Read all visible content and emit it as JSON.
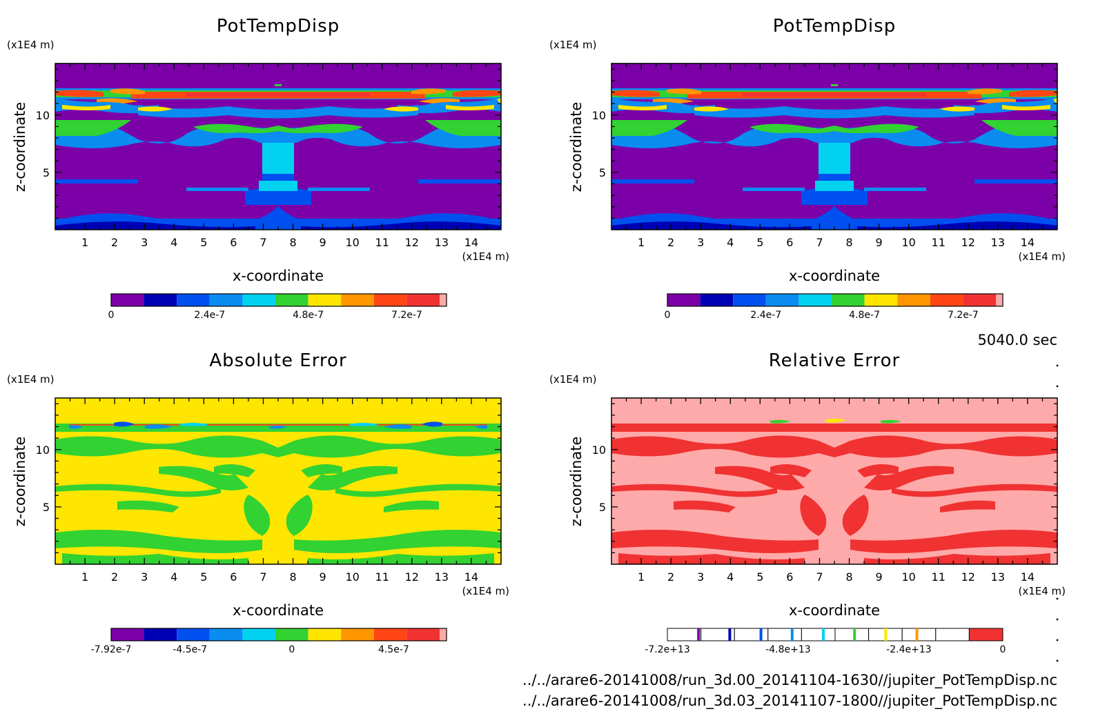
{
  "timestamp": "5040.0 sec",
  "footer": {
    "line1": "../../arare6-20141008/run_3d.00_20141104-1630//jupiter_PotTempDisp.nc",
    "line2": "../../arare6-20141008/run_3d.03_20141107-1800//jupiter_PotTempDisp.nc"
  },
  "chart_data": [
    {
      "type": "heatmap",
      "title": "PotTempDisp",
      "xlabel": "x-coordinate",
      "ylabel": "z-coordinate",
      "x_unit": "(x1E4 m)",
      "y_unit": "(x1E4 m)",
      "xlim": [
        0,
        15
      ],
      "ylim": [
        0,
        14.5
      ],
      "x_ticks": [
        1,
        2,
        3,
        4,
        5,
        6,
        7,
        8,
        9,
        10,
        11,
        12,
        13,
        14
      ],
      "y_ticks": [
        5,
        10
      ],
      "colorbar": {
        "colors": [
          "#7b00a8",
          "#0000b4",
          "#0050f0",
          "#0a8cf0",
          "#00d2f0",
          "#32d232",
          "#ffe600",
          "#ff9600",
          "#ff4614",
          "#f03232",
          "#ffaaaa"
        ],
        "labels": [
          "0",
          "2.4e-7",
          "4.8e-7",
          "7.2e-7"
        ],
        "label_positions": [
          0,
          3,
          6,
          9
        ]
      }
    },
    {
      "type": "heatmap",
      "title": "PotTempDisp",
      "xlabel": "x-coordinate",
      "ylabel": "z-coordinate",
      "x_unit": "(x1E4 m)",
      "y_unit": "(x1E4 m)",
      "xlim": [
        0,
        15
      ],
      "ylim": [
        0,
        14.5
      ],
      "x_ticks": [
        1,
        2,
        3,
        4,
        5,
        6,
        7,
        8,
        9,
        10,
        11,
        12,
        13,
        14
      ],
      "y_ticks": [
        5,
        10
      ],
      "colorbar": {
        "colors": [
          "#7b00a8",
          "#0000b4",
          "#0050f0",
          "#0a8cf0",
          "#00d2f0",
          "#32d232",
          "#ffe600",
          "#ff9600",
          "#ff4614",
          "#f03232",
          "#ffaaaa"
        ],
        "labels": [
          "0",
          "2.4e-7",
          "4.8e-7",
          "7.2e-7"
        ],
        "label_positions": [
          0,
          3,
          6,
          9
        ]
      }
    },
    {
      "type": "heatmap",
      "title": "Absolute Error",
      "xlabel": "x-coordinate",
      "ylabel": "z-coordinate",
      "x_unit": "(x1E4 m)",
      "y_unit": "(x1E4 m)",
      "xlim": [
        0,
        15
      ],
      "ylim": [
        0,
        14.5
      ],
      "x_ticks": [
        1,
        2,
        3,
        4,
        5,
        6,
        7,
        8,
        9,
        10,
        11,
        12,
        13,
        14
      ],
      "y_ticks": [
        5,
        10
      ],
      "colorbar": {
        "colors": [
          "#7b00a8",
          "#0000b4",
          "#0050f0",
          "#0a8cf0",
          "#00d2f0",
          "#32d232",
          "#ffe600",
          "#ff9600",
          "#ff4614",
          "#f03232",
          "#ffaaaa"
        ],
        "labels": [
          "-7.92e-7",
          "-4.5e-7",
          "0",
          "4.5e-7"
        ],
        "label_positions": [
          0,
          2.4,
          5.5,
          8.6
        ]
      }
    },
    {
      "type": "heatmap",
      "title": "Relative Error",
      "xlabel": "x-coordinate",
      "ylabel": "z-coordinate",
      "x_unit": "(x1E4 m)",
      "y_unit": "(x1E4 m)",
      "xlim": [
        0,
        15
      ],
      "ylim": [
        0,
        14.5
      ],
      "x_ticks": [
        1,
        2,
        3,
        4,
        5,
        6,
        7,
        8,
        9,
        10,
        11,
        12,
        13,
        14
      ],
      "y_ticks": [
        5,
        10
      ],
      "colorbar": {
        "colors": [
          "#ffffff",
          "#ffffff",
          "#ffffff",
          "#ffffff",
          "#ffffff",
          "#ffffff",
          "#ffffff",
          "#ffffff",
          "#ffffff",
          "#f03232"
        ],
        "markers": [
          "#7b00a8",
          "#0000b4",
          "#0050f0",
          "#0a8cf0",
          "#00d2f0",
          "#32d232",
          "#ffe600",
          "#ff9600"
        ],
        "labels": [
          "-7.2e+13",
          "-4.8e+13",
          "-2.4e+13",
          "0"
        ],
        "label_positions": [
          0,
          3,
          6,
          10
        ]
      }
    }
  ]
}
